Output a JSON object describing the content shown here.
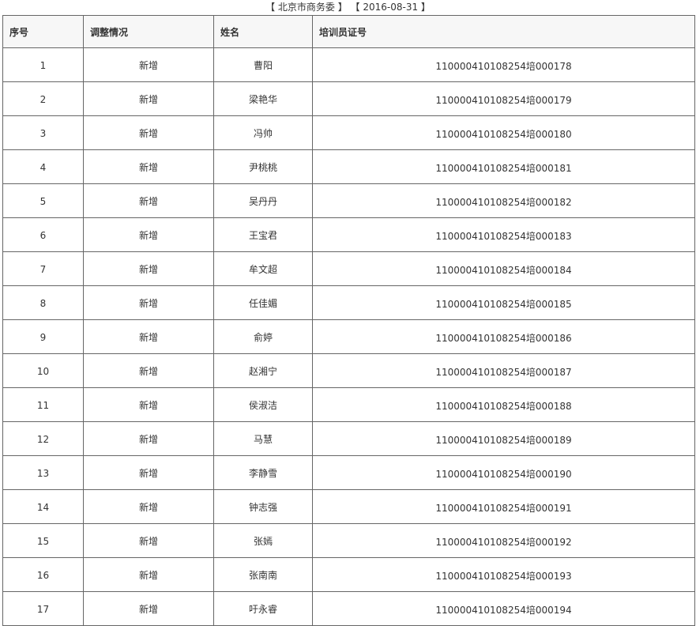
{
  "header": {
    "org": "【 北京市商务委 】",
    "date": "【 2016-08-31 】"
  },
  "columns": [
    "序号",
    "调整情况",
    "姓名",
    "培训员证号"
  ],
  "rows": [
    [
      "1",
      "新增",
      "曹阳",
      "110000410108254培000178"
    ],
    [
      "2",
      "新增",
      "梁艳华",
      "110000410108254培000179"
    ],
    [
      "3",
      "新增",
      "冯帅",
      "110000410108254培000180"
    ],
    [
      "4",
      "新增",
      "尹桃桃",
      "110000410108254培000181"
    ],
    [
      "5",
      "新增",
      "吴丹丹",
      "110000410108254培000182"
    ],
    [
      "6",
      "新增",
      "王宝君",
      "110000410108254培000183"
    ],
    [
      "7",
      "新增",
      "牟文超",
      "110000410108254培000184"
    ],
    [
      "8",
      "新增",
      "任佳媚",
      "110000410108254培000185"
    ],
    [
      "9",
      "新增",
      "俞婷",
      "110000410108254培000186"
    ],
    [
      "10",
      "新增",
      "赵湘宁",
      "110000410108254培000187"
    ],
    [
      "11",
      "新增",
      "侯淑洁",
      "110000410108254培000188"
    ],
    [
      "12",
      "新增",
      "马慧",
      "110000410108254培000189"
    ],
    [
      "13",
      "新增",
      "李静雪",
      "110000410108254培000190"
    ],
    [
      "14",
      "新增",
      "钟志强",
      "110000410108254培000191"
    ],
    [
      "15",
      "新增",
      "张嫣",
      "110000410108254培000192"
    ],
    [
      "16",
      "新增",
      "张南南",
      "110000410108254培000193"
    ],
    [
      "17",
      "新增",
      "吁永睿",
      "110000410108254培000194"
    ]
  ]
}
